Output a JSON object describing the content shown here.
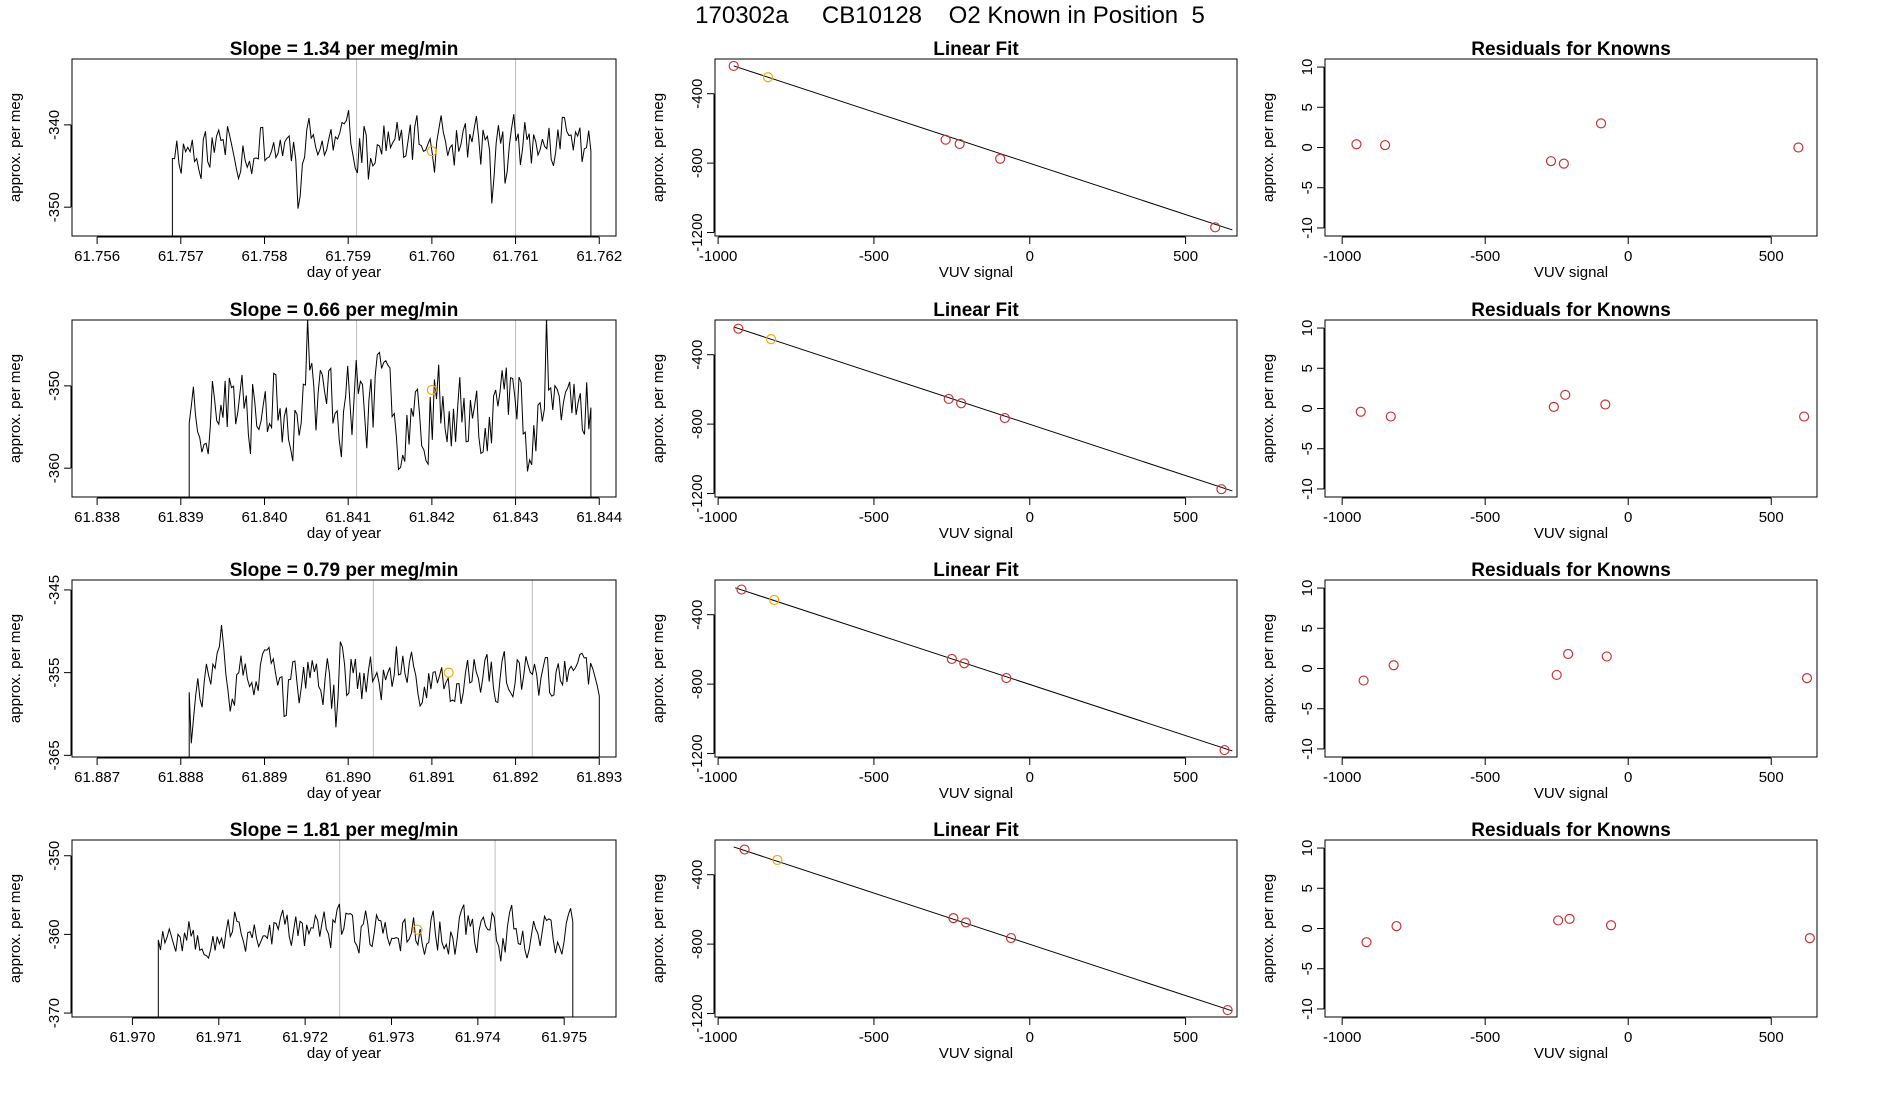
{
  "figure_title": "170302a     CB10128    O2 Known in Position  5",
  "colors": {
    "trace": "#000000",
    "fit_line": "#000000",
    "point_red": "#cd3333",
    "point_orange": "#ffa500",
    "vline": "#bebebe",
    "frame": "#000000"
  },
  "chart_data": [
    {
      "type": "line",
      "panel": "slope",
      "row": 1,
      "title": "Slope =  1.34  per meg/min",
      "xlabel": "day of year",
      "ylabel": "approx. per meg",
      "xlim": [
        61.7557,
        61.7622
      ],
      "ylim": [
        -353.5,
        -332
      ],
      "xticks": [
        61.756,
        61.757,
        61.758,
        61.759,
        61.76,
        61.761,
        61.762
      ],
      "xtick_labels": [
        "61.756",
        "61.757",
        "61.758",
        "61.759",
        "61.760",
        "61.761",
        "61.762"
      ],
      "yticks": [
        -340,
        -350
      ],
      "ytick_labels": [
        "-340",
        "-350"
      ],
      "vlines": [
        61.7591,
        61.761
      ],
      "orange_point": {
        "x": 61.76,
        "y": -343.2
      },
      "trace": {
        "x_start": 61.7569,
        "x_end": 61.7619,
        "base": -342.5,
        "amp": 5.5,
        "seed": 11
      }
    },
    {
      "type": "scatter",
      "panel": "fit",
      "row": 1,
      "title": "Linear Fit",
      "xlabel": "VUV signal",
      "ylabel": "approx. per meg",
      "xlim": [
        -1010,
        665
      ],
      "ylim": [
        -1220,
        -200
      ],
      "xticks": [
        -1000,
        -500,
        0,
        500
      ],
      "xtick_labels": [
        "-1000",
        "-500",
        "0",
        "500"
      ],
      "yticks": [
        -400,
        -800,
        -1200
      ],
      "ytick_labels": [
        "-400",
        "-800",
        "-1200"
      ],
      "fit_line": {
        "x": [
          -950,
          650
        ],
        "y": [
          -240,
          -1185
        ]
      },
      "points_red": [
        [
          -950,
          -240
        ],
        [
          -270,
          -665
        ],
        [
          -225,
          -690
        ],
        [
          -95,
          -775
        ],
        [
          595,
          -1170
        ]
      ],
      "points_orange": [
        [
          -840,
          -305
        ]
      ]
    },
    {
      "type": "scatter",
      "panel": "residuals",
      "row": 1,
      "title": "Residuals for Knowns",
      "xlabel": "VUV signal",
      "ylabel": "approx. per meg",
      "xlim": [
        -1060,
        660
      ],
      "ylim": [
        -11,
        11
      ],
      "xticks": [
        -1000,
        -500,
        0,
        500
      ],
      "xtick_labels": [
        "-1000",
        "-500",
        "0",
        "500"
      ],
      "yticks": [
        10,
        5,
        0,
        -5,
        -10
      ],
      "ytick_labels": [
        "10",
        "5",
        "0",
        "-5",
        "-10"
      ],
      "points_red": [
        [
          -950,
          0.4
        ],
        [
          -850,
          0.3
        ],
        [
          -270,
          -1.7
        ],
        [
          -225,
          -2.0
        ],
        [
          -95,
          3.0
        ],
        [
          595,
          0.0
        ]
      ]
    },
    {
      "type": "line",
      "panel": "slope",
      "row": 2,
      "title": "Slope =  0.66  per meg/min",
      "xlabel": "day of year",
      "ylabel": "approx. per meg",
      "xlim": [
        61.8377,
        61.8442
      ],
      "ylim": [
        -363.5,
        -342
      ],
      "xticks": [
        61.838,
        61.839,
        61.84,
        61.841,
        61.842,
        61.843,
        61.844
      ],
      "xtick_labels": [
        "61.838",
        "61.839",
        "61.840",
        "61.841",
        "61.842",
        "61.843",
        "61.844"
      ],
      "yticks": [
        -350,
        -360
      ],
      "ytick_labels": [
        "-350",
        "-360"
      ],
      "vlines": [
        61.8411,
        61.843
      ],
      "orange_point": {
        "x": 61.842,
        "y": -350.5
      },
      "trace": {
        "x_start": 61.8391,
        "x_end": 61.8439,
        "base": -352,
        "amp": 9,
        "seed": 23
      }
    },
    {
      "type": "scatter",
      "panel": "fit",
      "row": 2,
      "title": "Linear Fit",
      "xlabel": "VUV signal",
      "ylabel": "approx. per meg",
      "xlim": [
        -1010,
        665
      ],
      "ylim": [
        -1220,
        -200
      ],
      "xticks": [
        -1000,
        -500,
        0,
        500
      ],
      "xtick_labels": [
        "-1000",
        "-500",
        "0",
        "500"
      ],
      "yticks": [
        -400,
        -800,
        -1200
      ],
      "ytick_labels": [
        "-400",
        "-800",
        "-1200"
      ],
      "fit_line": {
        "x": [
          -950,
          650
        ],
        "y": [
          -240,
          -1185
        ]
      },
      "points_red": [
        [
          -935,
          -250
        ],
        [
          -260,
          -655
        ],
        [
          -220,
          -680
        ],
        [
          -80,
          -765
        ],
        [
          615,
          -1175
        ]
      ],
      "points_orange": [
        [
          -830,
          -310
        ]
      ]
    },
    {
      "type": "scatter",
      "panel": "residuals",
      "row": 2,
      "title": "Residuals for Knowns",
      "xlabel": "VUV signal",
      "ylabel": "approx. per meg",
      "xlim": [
        -1060,
        660
      ],
      "ylim": [
        -11,
        11
      ],
      "xticks": [
        -1000,
        -500,
        0,
        500
      ],
      "xtick_labels": [
        "-1000",
        "-500",
        "0",
        "500"
      ],
      "yticks": [
        10,
        5,
        0,
        -5,
        -10
      ],
      "ytick_labels": [
        "10",
        "5",
        "0",
        "-5",
        "-10"
      ],
      "points_red": [
        [
          -935,
          -0.4
        ],
        [
          -830,
          -1.0
        ],
        [
          -260,
          0.2
        ],
        [
          -220,
          1.7
        ],
        [
          -80,
          0.5
        ],
        [
          615,
          -1.0
        ]
      ]
    },
    {
      "type": "line",
      "panel": "slope",
      "row": 3,
      "title": "Slope =  0.79  per meg/min",
      "xlabel": "day of year",
      "ylabel": "approx. per meg",
      "xlim": [
        61.8867,
        61.8932
      ],
      "ylim": [
        -365.2,
        -343.8
      ],
      "xticks": [
        61.887,
        61.888,
        61.889,
        61.89,
        61.891,
        61.892,
        61.893
      ],
      "xtick_labels": [
        "61.887",
        "61.888",
        "61.889",
        "61.890",
        "61.891",
        "61.892",
        "61.893"
      ],
      "yticks": [
        -345,
        -355,
        -365
      ],
      "ytick_labels": [
        "-345",
        "-355",
        "-365"
      ],
      "vlines": [
        61.8903,
        61.8922
      ],
      "orange_point": {
        "x": 61.8912,
        "y": -355.0
      },
      "trace": {
        "x_start": 61.8881,
        "x_end": 61.893,
        "base": -356,
        "amp": 5,
        "seed": 37
      }
    },
    {
      "type": "scatter",
      "panel": "fit",
      "row": 3,
      "title": "Linear Fit",
      "xlabel": "VUV signal",
      "ylabel": "approx. per meg",
      "xlim": [
        -1010,
        665
      ],
      "ylim": [
        -1220,
        -200
      ],
      "xticks": [
        -1000,
        -500,
        0,
        500
      ],
      "xtick_labels": [
        "-1000",
        "-500",
        "0",
        "500"
      ],
      "yticks": [
        -400,
        -800,
        -1200
      ],
      "ytick_labels": [
        "-400",
        "-800",
        "-1200"
      ],
      "fit_line": {
        "x": [
          -945,
          650
        ],
        "y": [
          -245,
          -1185
        ]
      },
      "points_red": [
        [
          -925,
          -255
        ],
        [
          -250,
          -655
        ],
        [
          -210,
          -680
        ],
        [
          -75,
          -765
        ],
        [
          625,
          -1180
        ]
      ],
      "points_orange": [
        [
          -820,
          -315
        ]
      ]
    },
    {
      "type": "scatter",
      "panel": "residuals",
      "row": 3,
      "title": "Residuals for Knowns",
      "xlabel": "VUV signal",
      "ylabel": "approx. per meg",
      "xlim": [
        -1060,
        660
      ],
      "ylim": [
        -11,
        11
      ],
      "xticks": [
        -1000,
        -500,
        0,
        500
      ],
      "xtick_labels": [
        "-1000",
        "-500",
        "0",
        "500"
      ],
      "yticks": [
        10,
        5,
        0,
        -5,
        -10
      ],
      "ytick_labels": [
        "10",
        "5",
        "0",
        "-5",
        "-10"
      ],
      "points_red": [
        [
          -925,
          -1.5
        ],
        [
          -820,
          0.4
        ],
        [
          -250,
          -0.8
        ],
        [
          -210,
          1.8
        ],
        [
          -75,
          1.5
        ],
        [
          625,
          -1.2
        ]
      ]
    },
    {
      "type": "line",
      "panel": "slope",
      "row": 4,
      "title": "Slope =  1.81  per meg/min",
      "xlabel": "day of year",
      "ylabel": "approx. per meg",
      "xlim": [
        61.9693,
        61.9756
      ],
      "ylim": [
        -370.5,
        -348
      ],
      "xticks": [
        61.97,
        61.971,
        61.972,
        61.973,
        61.974,
        61.975
      ],
      "xtick_labels": [
        "61.970",
        "61.971",
        "61.972",
        "61.973",
        "61.974",
        "61.975"
      ],
      "yticks": [
        -350,
        -360,
        -370
      ],
      "ytick_labels": [
        "-350",
        "-360",
        "-370"
      ],
      "vlines": [
        61.9724,
        61.9742
      ],
      "orange_point": {
        "x": 61.9733,
        "y": -359.4
      },
      "trace": {
        "x_start": 61.9703,
        "x_end": 61.9751,
        "base": -359.5,
        "amp": 4.5,
        "seed": 53
      }
    },
    {
      "type": "scatter",
      "panel": "fit",
      "row": 4,
      "title": "Linear Fit",
      "xlabel": "VUV signal",
      "ylabel": "approx. per meg",
      "xlim": [
        -1010,
        665
      ],
      "ylim": [
        -1220,
        -200
      ],
      "xticks": [
        -1000,
        -500,
        0,
        500
      ],
      "xtick_labels": [
        "-1000",
        "-500",
        "0",
        "500"
      ],
      "yticks": [
        -400,
        -800,
        -1200
      ],
      "ytick_labels": [
        "-400",
        "-800",
        "-1200"
      ],
      "fit_line": {
        "x": [
          -950,
          650
        ],
        "y": [
          -240,
          -1185
        ]
      },
      "points_red": [
        [
          -915,
          -255
        ],
        [
          -245,
          -650
        ],
        [
          -205,
          -675
        ],
        [
          -60,
          -765
        ],
        [
          635,
          -1180
        ]
      ],
      "points_orange": [
        [
          -810,
          -315
        ]
      ]
    },
    {
      "type": "scatter",
      "panel": "residuals",
      "row": 4,
      "title": "Residuals for Knowns",
      "xlabel": "VUV signal",
      "ylabel": "approx. per meg",
      "xlim": [
        -1060,
        660
      ],
      "ylim": [
        -11,
        11
      ],
      "xticks": [
        -1000,
        -500,
        0,
        500
      ],
      "xtick_labels": [
        "-1000",
        "-500",
        "0",
        "500"
      ],
      "yticks": [
        10,
        5,
        0,
        -5,
        -10
      ],
      "ytick_labels": [
        "10",
        "5",
        "0",
        "-5",
        "-10"
      ],
      "points_red": [
        [
          -915,
          -1.7
        ],
        [
          -810,
          0.3
        ],
        [
          -245,
          1.0
        ],
        [
          -205,
          1.2
        ],
        [
          -60,
          0.4
        ],
        [
          635,
          -1.2
        ]
      ]
    }
  ]
}
